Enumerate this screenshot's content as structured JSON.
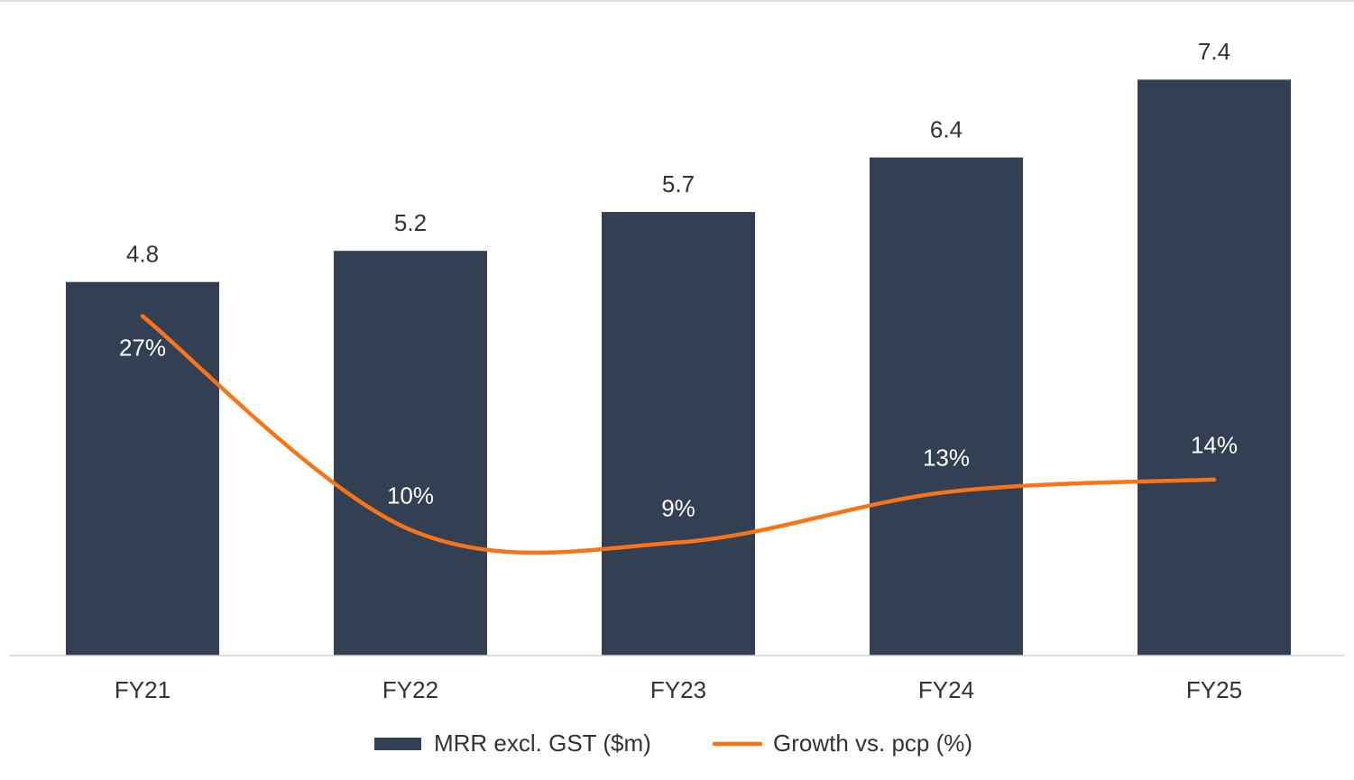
{
  "chart_data": {
    "type": "bar",
    "categories": [
      "FY21",
      "FY22",
      "FY23",
      "FY24",
      "FY25"
    ],
    "series": [
      {
        "name": "MRR excl. GST ($m)",
        "type": "bar",
        "color": "#333f52",
        "values": [
          4.8,
          5.2,
          5.7,
          6.4,
          7.4
        ]
      },
      {
        "name": "Growth vs. pcp (%)",
        "type": "line",
        "axis": "y2",
        "color": "#f77418",
        "values": [
          27,
          10,
          9,
          13,
          14
        ],
        "value_labels": [
          "27%",
          "10%",
          "9%",
          "13%",
          "14%"
        ]
      }
    ],
    "ylim": [
      0,
      8.4
    ],
    "y2lim": [
      0,
      52
    ],
    "legend": "bottom"
  }
}
